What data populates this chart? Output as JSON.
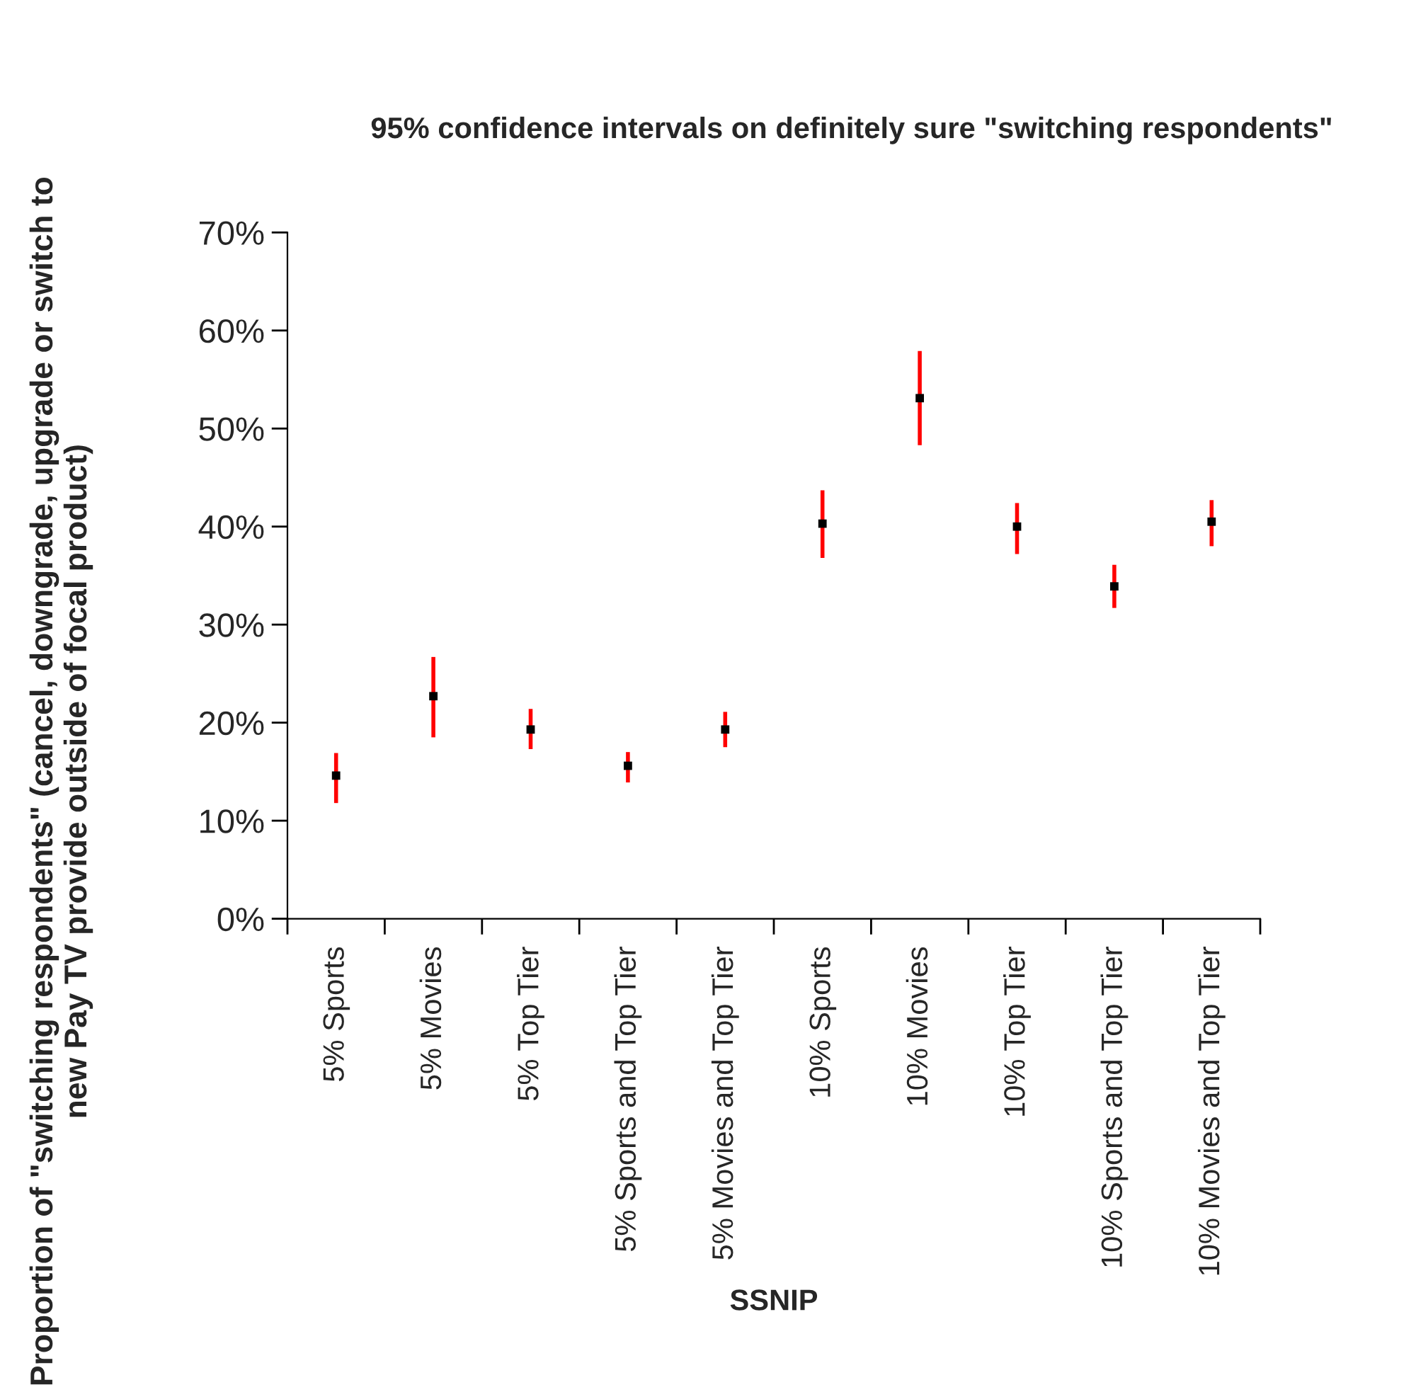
{
  "chart_data": {
    "type": "scatter",
    "title": "95% confidence intervals on definitely sure \"switching respondents\"",
    "xlabel": "SSNIP",
    "ylabel": "Proportion of \"switching respondents\" (cancel, downgrade, upgrade or switch to new Pay TV provide outside of focal product)",
    "categories": [
      "5% Sports",
      "5% Movies",
      "5% Top Tier",
      "5% Sports and Top Tier",
      "5% Movies and Top Tier",
      "10% Sports",
      "10% Movies",
      "10% Top Tier",
      "10% Sports and Top Tier",
      "10% Movies and Top Tier"
    ],
    "series": [
      {
        "color": "#000000",
        "values": [
          14.6,
          22.7,
          19.3,
          15.6,
          19.3,
          40.3,
          53.1,
          40.0,
          33.9,
          40.5
        ],
        "errors": [
          [
            11.8,
            16.9
          ],
          [
            18.5,
            26.7
          ],
          [
            17.3,
            21.4
          ],
          [
            13.9,
            17.0
          ],
          [
            17.5,
            21.1
          ],
          [
            36.8,
            43.7
          ],
          [
            48.3,
            57.9
          ],
          [
            37.2,
            42.4
          ],
          [
            31.7,
            36.1
          ],
          [
            38.0,
            42.7
          ]
        ]
      }
    ],
    "ylim": [
      0,
      70
    ],
    "yticks": [
      {
        "value": 0,
        "label": "0%"
      },
      {
        "value": 10,
        "label": "10%"
      },
      {
        "value": 20,
        "label": "20%"
      },
      {
        "value": 30,
        "label": "30%"
      },
      {
        "value": 40,
        "label": "40%"
      },
      {
        "value": 50,
        "label": "50%"
      },
      {
        "value": 60,
        "label": "60%"
      },
      {
        "value": 70,
        "label": "70%"
      }
    ],
    "grid": false,
    "legend": false,
    "marker": "square"
  }
}
